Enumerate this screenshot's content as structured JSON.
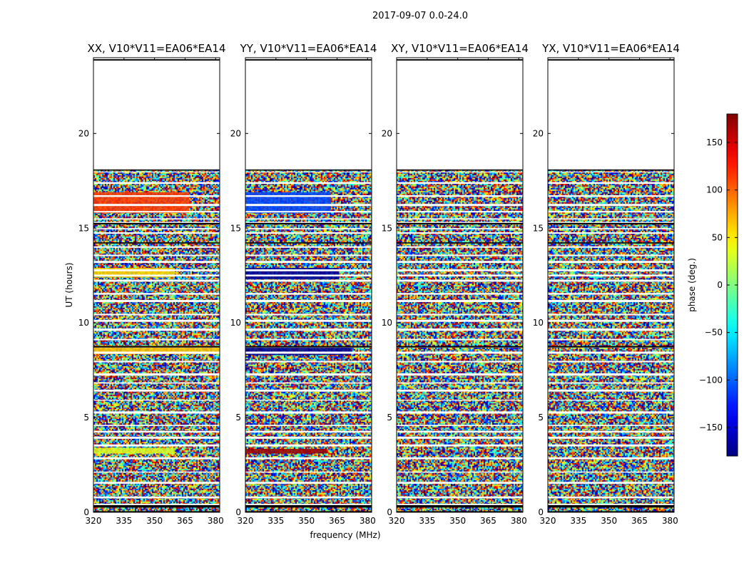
{
  "chart_data": {
    "type": "heatmap",
    "suptitle": "2017-09-07 0.0-24.0",
    "xlabel": "frequency (MHz)",
    "ylabel": "UT (hours)",
    "xlim": [
      320,
      382
    ],
    "ylim": [
      0,
      24
    ],
    "xticks": [
      320,
      335,
      350,
      365,
      380
    ],
    "yticks": [
      0,
      5,
      10,
      15,
      20
    ],
    "panels": [
      {
        "title": "XX, V10*V11=EA06*EA14",
        "coherent_bands": [
          {
            "t0": 15.8,
            "t1": 16.9,
            "phase": 115,
            "f_end": 367
          },
          {
            "t0": 12.4,
            "t1": 12.9,
            "phase": 60,
            "f_end": 360
          },
          {
            "t0": 8.35,
            "t1": 8.8,
            "phase": 65,
            "f_end": 382
          },
          {
            "t0": 3.1,
            "t1": 3.4,
            "phase": 35,
            "f_end": 360
          }
        ]
      },
      {
        "title": "YY, V10*V11=EA06*EA14",
        "coherent_bands": [
          {
            "t0": 15.8,
            "t1": 16.9,
            "phase": -110,
            "f_end": 362
          },
          {
            "t0": 12.3,
            "t1": 12.9,
            "phase": -170,
            "f_end": 366
          },
          {
            "t0": 8.3,
            "t1": 8.7,
            "phase": -175,
            "f_end": 372
          },
          {
            "t0": 3.1,
            "t1": 3.35,
            "phase": 170,
            "f_end": 360
          }
        ]
      },
      {
        "title": "XY, V10*V11=EA06*EA14",
        "coherent_bands": []
      },
      {
        "title": "YX, V10*V11=EA06*EA14",
        "coherent_bands": []
      }
    ],
    "flagged_time_ranges": [
      [
        18.1,
        24.0
      ]
    ],
    "colorbar": {
      "label": "phase (deg.)",
      "range": [
        -180,
        180
      ],
      "ticks": [
        150,
        100,
        50,
        0,
        -50,
        -100,
        -150
      ],
      "tick_labels": [
        "150",
        "100",
        "50",
        "0",
        "−50",
        "−100",
        "−150"
      ],
      "colormap": "jet"
    }
  }
}
